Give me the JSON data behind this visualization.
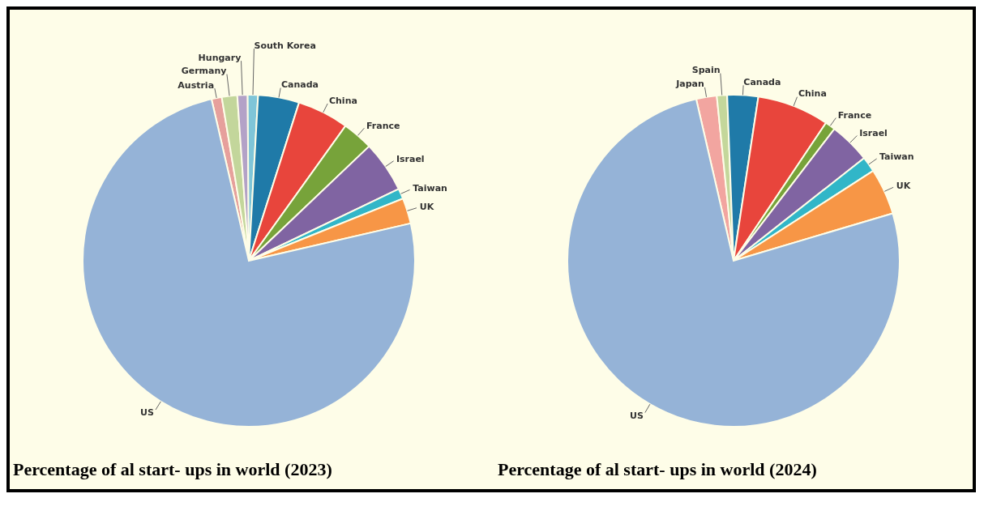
{
  "chart_data": [
    {
      "type": "pie",
      "title": "Percentage of al start- ups in world (2023)",
      "categories": [
        "Austria",
        "Germany",
        "Hungary",
        "South Korea",
        "Canada",
        "China",
        "France",
        "Israel",
        "Taiwan",
        "UK",
        "US"
      ],
      "values": [
        1,
        1.5,
        1,
        1,
        4,
        5,
        3,
        5,
        1,
        2.5,
        75
      ],
      "colors": [
        "#e6a09c",
        "#c3d69b",
        "#b3a2c7",
        "#7fc5d8",
        "#1f7aa8",
        "#e8453c",
        "#77a33a",
        "#8064a2",
        "#31b6c8",
        "#f79646",
        "#95b3d7"
      ]
    },
    {
      "type": "pie",
      "title": "Percentage of al start- ups in world (2024)",
      "categories": [
        "Japan",
        "Spain",
        "Canada",
        "China",
        "France",
        "Israel",
        "Taiwan",
        "UK",
        "US"
      ],
      "values": [
        2,
        1,
        3,
        7,
        1,
        4,
        1.5,
        4.5,
        76
      ],
      "colors": [
        "#f2a5a0",
        "#c4d79b",
        "#1f7aa8",
        "#e8453c",
        "#77a33a",
        "#8064a2",
        "#31b6c8",
        "#f79646",
        "#95b3d7"
      ]
    }
  ]
}
